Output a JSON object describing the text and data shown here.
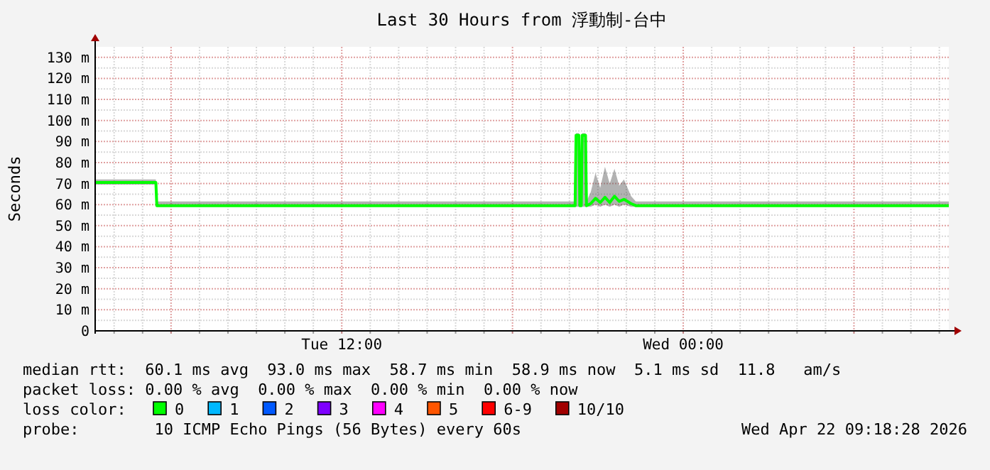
{
  "chart_data": {
    "type": "line",
    "title": "Last 30 Hours from 浮動制-台中",
    "ylabel": "Seconds",
    "xlim": [
      "2026-04-21T03:20",
      "2026-04-22T09:20"
    ],
    "xticks": [
      {
        "value": "2026-04-21T04:00",
        "label": null
      },
      {
        "value": "2026-04-21T05:00",
        "label": null
      },
      {
        "value": "2026-04-21T06:00",
        "label": null
      },
      {
        "value": "2026-04-21T07:00",
        "label": null
      },
      {
        "value": "2026-04-21T08:00",
        "label": null
      },
      {
        "value": "2026-04-21T09:00",
        "label": null
      },
      {
        "value": "2026-04-21T10:00",
        "label": null
      },
      {
        "value": "2026-04-21T11:00",
        "label": null
      },
      {
        "value": "2026-04-21T12:00",
        "label": "Tue 12:00"
      },
      {
        "value": "2026-04-21T13:00",
        "label": null
      },
      {
        "value": "2026-04-21T14:00",
        "label": null
      },
      {
        "value": "2026-04-21T15:00",
        "label": null
      },
      {
        "value": "2026-04-21T16:00",
        "label": null
      },
      {
        "value": "2026-04-21T17:00",
        "label": null
      },
      {
        "value": "2026-04-21T18:00",
        "label": null
      },
      {
        "value": "2026-04-21T19:00",
        "label": null
      },
      {
        "value": "2026-04-21T20:00",
        "label": null
      },
      {
        "value": "2026-04-21T21:00",
        "label": null
      },
      {
        "value": "2026-04-21T22:00",
        "label": null
      },
      {
        "value": "2026-04-21T23:00",
        "label": null
      },
      {
        "value": "2026-04-22T00:00",
        "label": "Wed 00:00"
      },
      {
        "value": "2026-04-22T01:00",
        "label": null
      },
      {
        "value": "2026-04-22T02:00",
        "label": null
      },
      {
        "value": "2026-04-22T03:00",
        "label": null
      },
      {
        "value": "2026-04-22T04:00",
        "label": null
      },
      {
        "value": "2026-04-22T05:00",
        "label": null
      },
      {
        "value": "2026-04-22T06:00",
        "label": null
      },
      {
        "value": "2026-04-22T07:00",
        "label": null
      },
      {
        "value": "2026-04-22T08:00",
        "label": null
      },
      {
        "value": "2026-04-22T09:00",
        "label": null
      }
    ],
    "ylim": [
      0,
      135
    ],
    "yticks": [
      0,
      {
        "value": 5,
        "label": null
      },
      {
        "value": 10,
        "label": "10 m"
      },
      {
        "value": 15,
        "label": null
      },
      {
        "value": 20,
        "label": "20 m"
      },
      {
        "value": 25,
        "label": null
      },
      {
        "value": 30,
        "label": "30 m"
      },
      {
        "value": 35,
        "label": null
      },
      {
        "value": 40,
        "label": "40 m"
      },
      {
        "value": 45,
        "label": null
      },
      {
        "value": 50,
        "label": "50 m"
      },
      {
        "value": 55,
        "label": null
      },
      {
        "value": 60,
        "label": "60 m"
      },
      {
        "value": 65,
        "label": null
      },
      {
        "value": 70,
        "label": "70 m"
      },
      {
        "value": 75,
        "label": null
      },
      {
        "value": 80,
        "label": "80 m"
      },
      {
        "value": 85,
        "label": null
      },
      {
        "value": 90,
        "label": "90 m"
      },
      {
        "value": 95,
        "label": null
      },
      {
        "value": 100,
        "label": "100 m"
      },
      {
        "value": 105,
        "label": null
      },
      {
        "value": 110,
        "label": "110 m"
      },
      {
        "value": 115,
        "label": null
      },
      {
        "value": 120,
        "label": "120 m"
      },
      {
        "value": 125,
        "label": null
      },
      {
        "value": 130,
        "label": "130 m"
      }
    ],
    "grid": true,
    "series": [
      {
        "color": "#00ff00",
        "x": [
          "2026-04-21T03:20",
          "2026-04-21T04:30",
          "2026-04-21T05:28",
          "2026-04-21T05:30",
          "2026-04-21T08:00",
          "2026-04-21T11:00",
          "2026-04-21T14:00",
          "2026-04-21T17:00",
          "2026-04-21T20:12",
          "2026-04-21T20:14",
          "2026-04-21T20:20",
          "2026-04-21T20:22",
          "2026-04-21T20:25",
          "2026-04-21T20:27",
          "2026-04-21T20:34",
          "2026-04-21T20:36",
          "2026-04-21T20:45",
          "2026-04-21T20:55",
          "2026-04-21T21:05",
          "2026-04-21T21:15",
          "2026-04-21T21:25",
          "2026-04-21T21:35",
          "2026-04-21T21:45",
          "2026-04-21T21:55",
          "2026-04-21T22:10",
          "2026-04-21T22:20",
          "2026-04-22T01:00",
          "2026-04-22T04:00",
          "2026-04-22T07:00",
          "2026-04-22T09:20"
        ],
        "values": [
          70.5,
          70.5,
          70.5,
          59.5,
          59.5,
          59.5,
          59.5,
          59.5,
          59.5,
          93,
          93,
          59.5,
          59.5,
          93,
          93,
          59.5,
          60.5,
          63,
          61,
          63.5,
          61,
          64,
          61.5,
          62.5,
          60.5,
          59.5,
          59.5,
          59.5,
          59.5,
          59.5
        ],
        "lower": [
          69.5,
          69.5,
          69.5,
          59,
          59,
          59,
          59,
          59,
          59,
          59,
          59,
          59,
          59,
          59,
          59,
          59,
          59,
          60,
          59,
          60,
          59,
          60,
          59,
          60,
          59,
          59,
          59,
          59,
          59,
          59
        ],
        "upper": [
          72,
          72,
          72,
          61.5,
          61.5,
          61.5,
          61.5,
          61.5,
          61.5,
          94,
          94,
          61.5,
          61.5,
          94,
          94,
          61.5,
          66,
          75,
          68,
          78,
          70,
          77,
          69,
          72,
          64,
          61.5,
          61.5,
          61.5,
          61.5,
          61.5
        ]
      }
    ],
    "annotations": [
      "median rtt:  60.1 ms avg  93.0 ms max  58.7 ms min  58.9 ms now  5.1 ms sd  11.8   am/s",
      "packet loss: 0.00 % avg  0.00 % max  0.00 % min  0.00 % now",
      "loss color:",
      "0",
      "1",
      "2",
      "3",
      "4",
      "5",
      "6-9",
      "10/10",
      "probe:        10 ICMP Echo Pings (56 Bytes) every 60s",
      "Wed Apr 22 09:18:28 2026"
    ]
  }
}
